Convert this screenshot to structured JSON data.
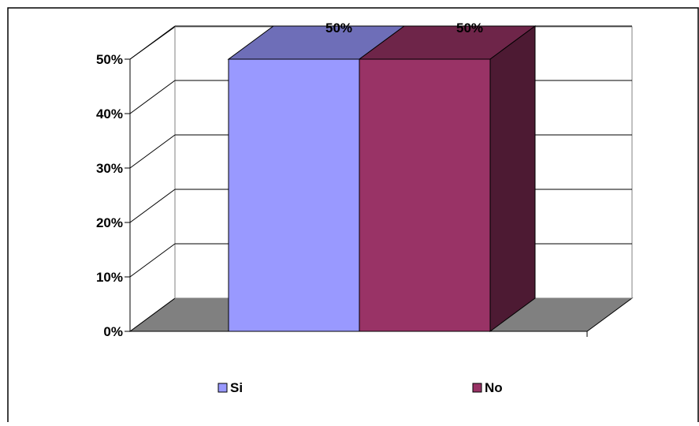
{
  "chart_data": {
    "type": "bar",
    "style": "3d-clustered-column",
    "categories": [
      ""
    ],
    "series": [
      {
        "name": "Si",
        "values": [
          50
        ],
        "color": "#9999ff"
      },
      {
        "name": "No",
        "values": [
          50
        ],
        "color": "#993366"
      }
    ],
    "data_labels": [
      "50%",
      "50%"
    ],
    "yticks": [
      "0%",
      "10%",
      "20%",
      "30%",
      "40%",
      "50%"
    ],
    "ylim": [
      0,
      50
    ],
    "grid": true,
    "legend": {
      "position": "bottom",
      "items": [
        "Si",
        "No"
      ]
    },
    "colors": {
      "floor": "#808080",
      "background": "#ffffff",
      "gridline": "#000000"
    }
  }
}
